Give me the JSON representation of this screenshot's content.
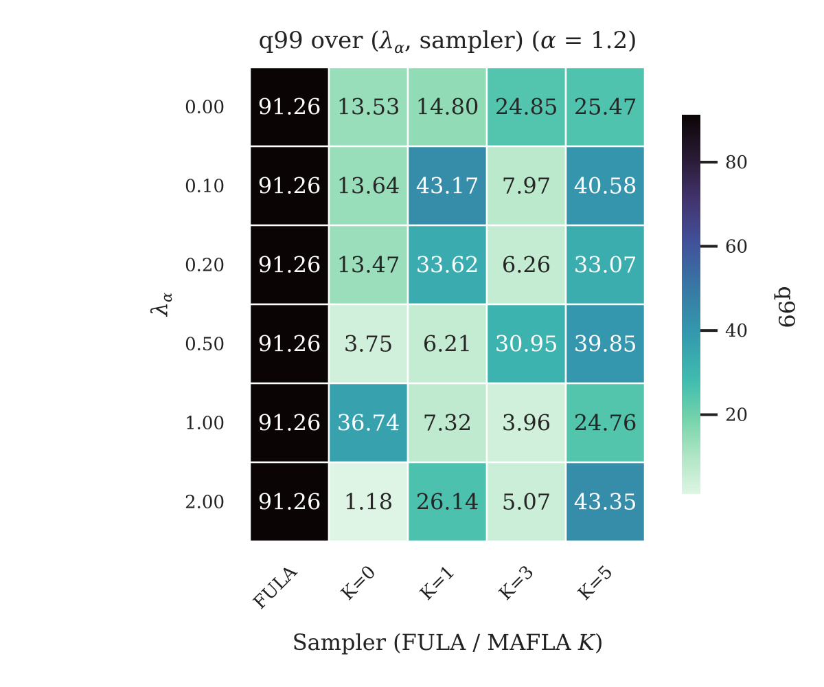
{
  "chart_data": {
    "type": "heatmap",
    "title_parts": {
      "pre": "q99 over (",
      "lambda": "λ",
      "alpha_sub": "α",
      "mid": ", sampler) (",
      "alpha": "α",
      "post": " = 1.2)"
    },
    "xlabel_parts": {
      "pre": "Sampler (FULA / MAFLA ",
      "k": "K",
      "post": ")"
    },
    "ylabel_parts": {
      "lambda": "λ",
      "alpha_sub": "α"
    },
    "x_categories": [
      "FULA",
      "K=0",
      "K=1",
      "K=3",
      "K=5"
    ],
    "y_categories": [
      "0.00",
      "0.10",
      "0.20",
      "0.50",
      "1.00",
      "2.00"
    ],
    "values": [
      [
        91.26,
        13.53,
        14.8,
        24.85,
        25.47
      ],
      [
        91.26,
        13.64,
        43.17,
        7.97,
        40.58
      ],
      [
        91.26,
        13.47,
        33.62,
        6.26,
        33.07
      ],
      [
        91.26,
        3.75,
        6.21,
        30.95,
        39.85
      ],
      [
        91.26,
        36.74,
        7.32,
        3.96,
        24.76
      ],
      [
        91.26,
        1.18,
        26.14,
        5.07,
        43.35
      ]
    ],
    "value_labels": [
      [
        "91.26",
        "13.53",
        "14.80",
        "24.85",
        "25.47"
      ],
      [
        "91.26",
        "13.64",
        "43.17",
        "7.97",
        "40.58"
      ],
      [
        "91.26",
        "13.47",
        "33.62",
        "6.26",
        "33.07"
      ],
      [
        "91.26",
        "3.75",
        "6.21",
        "30.95",
        "39.85"
      ],
      [
        "91.26",
        "36.74",
        "7.32",
        "3.96",
        "24.76"
      ],
      [
        "91.26",
        "1.18",
        "26.14",
        "5.07",
        "43.35"
      ]
    ],
    "colorbar": {
      "label": "q99",
      "vmin": 1.18,
      "vmax": 91.26,
      "ticks": [
        20,
        40,
        60,
        80
      ],
      "tick_labels": [
        "20",
        "40",
        "60",
        "80"
      ]
    },
    "colormap": "mako_r",
    "cell_border_color": "#ffffff",
    "grid": false
  }
}
